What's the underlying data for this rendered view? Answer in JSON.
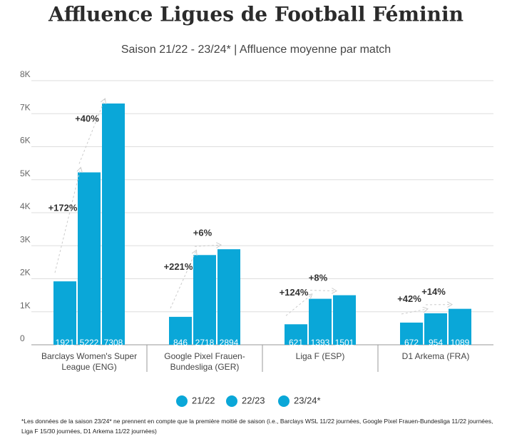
{
  "chart_data": {
    "type": "bar",
    "title": "Affluence Ligues de Football Féminin",
    "subtitle": "Saison 21/22 - 23/24* | Affluence moyenne par match",
    "categories": [
      "Barclays Women's Super League (ENG)",
      "Google Pixel Frauen-Bundesliga (GER)",
      "Liga F (ESP)",
      "D1 Arkema (FRA)"
    ],
    "series": [
      {
        "name": "21/22",
        "color": "#0aa7d8",
        "values": [
          1921,
          846,
          621,
          672
        ]
      },
      {
        "name": "22/23",
        "color": "#0aa7d8",
        "values": [
          5222,
          2718,
          1393,
          954
        ]
      },
      {
        "name": "23/24*",
        "color": "#0aa7d8",
        "values": [
          7308,
          2894,
          1501,
          1089
        ]
      }
    ],
    "annotations": [
      "+172%",
      "+40%",
      "+221%",
      "+6%",
      "+124%",
      "+8%",
      "+42%",
      "+14%"
    ],
    "ylim": [
      0,
      8000
    ],
    "yticks": [
      0,
      {
        "value": 1000,
        "label": "1K"
      },
      {
        "value": 2000,
        "label": "2K"
      },
      {
        "value": 3000,
        "label": "3K"
      },
      {
        "value": 4000,
        "label": "4K"
      },
      {
        "value": 5000,
        "label": "5K"
      },
      {
        "value": 6000,
        "label": "6K"
      },
      {
        "value": 7000,
        "label": "7K"
      },
      {
        "value": 8000,
        "label": "8K"
      }
    ],
    "grid": true,
    "footnote": "*Les données de la saison 23/24* ne prennent en compte que la première moitié de saison (i.e., Barclays WSL 11/22 journées, Google Pixel Frauen-Bundesliga 11/22 journées, Liga F 15/30 journées, D1 Arkema 11/22 journées)"
  }
}
